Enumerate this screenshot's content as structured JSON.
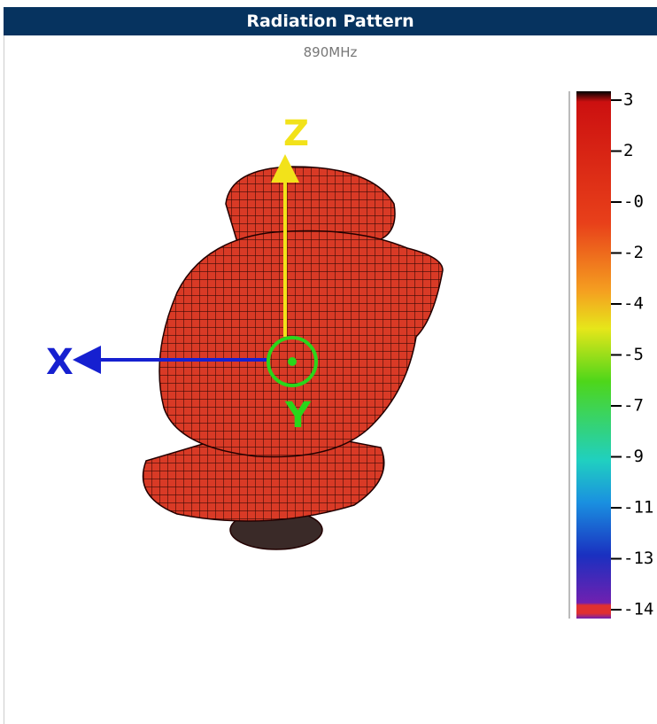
{
  "header": {
    "title": "Radiation Pattern"
  },
  "subtitle": "890MHz",
  "axes": {
    "x": "X",
    "y": "Y",
    "z": "Z"
  },
  "colorbar": {
    "labels": [
      "3",
      "2",
      "-0",
      "-2",
      "-4",
      "-5",
      "-7",
      "-9",
      "-11",
      "-13",
      "-14"
    ]
  }
}
